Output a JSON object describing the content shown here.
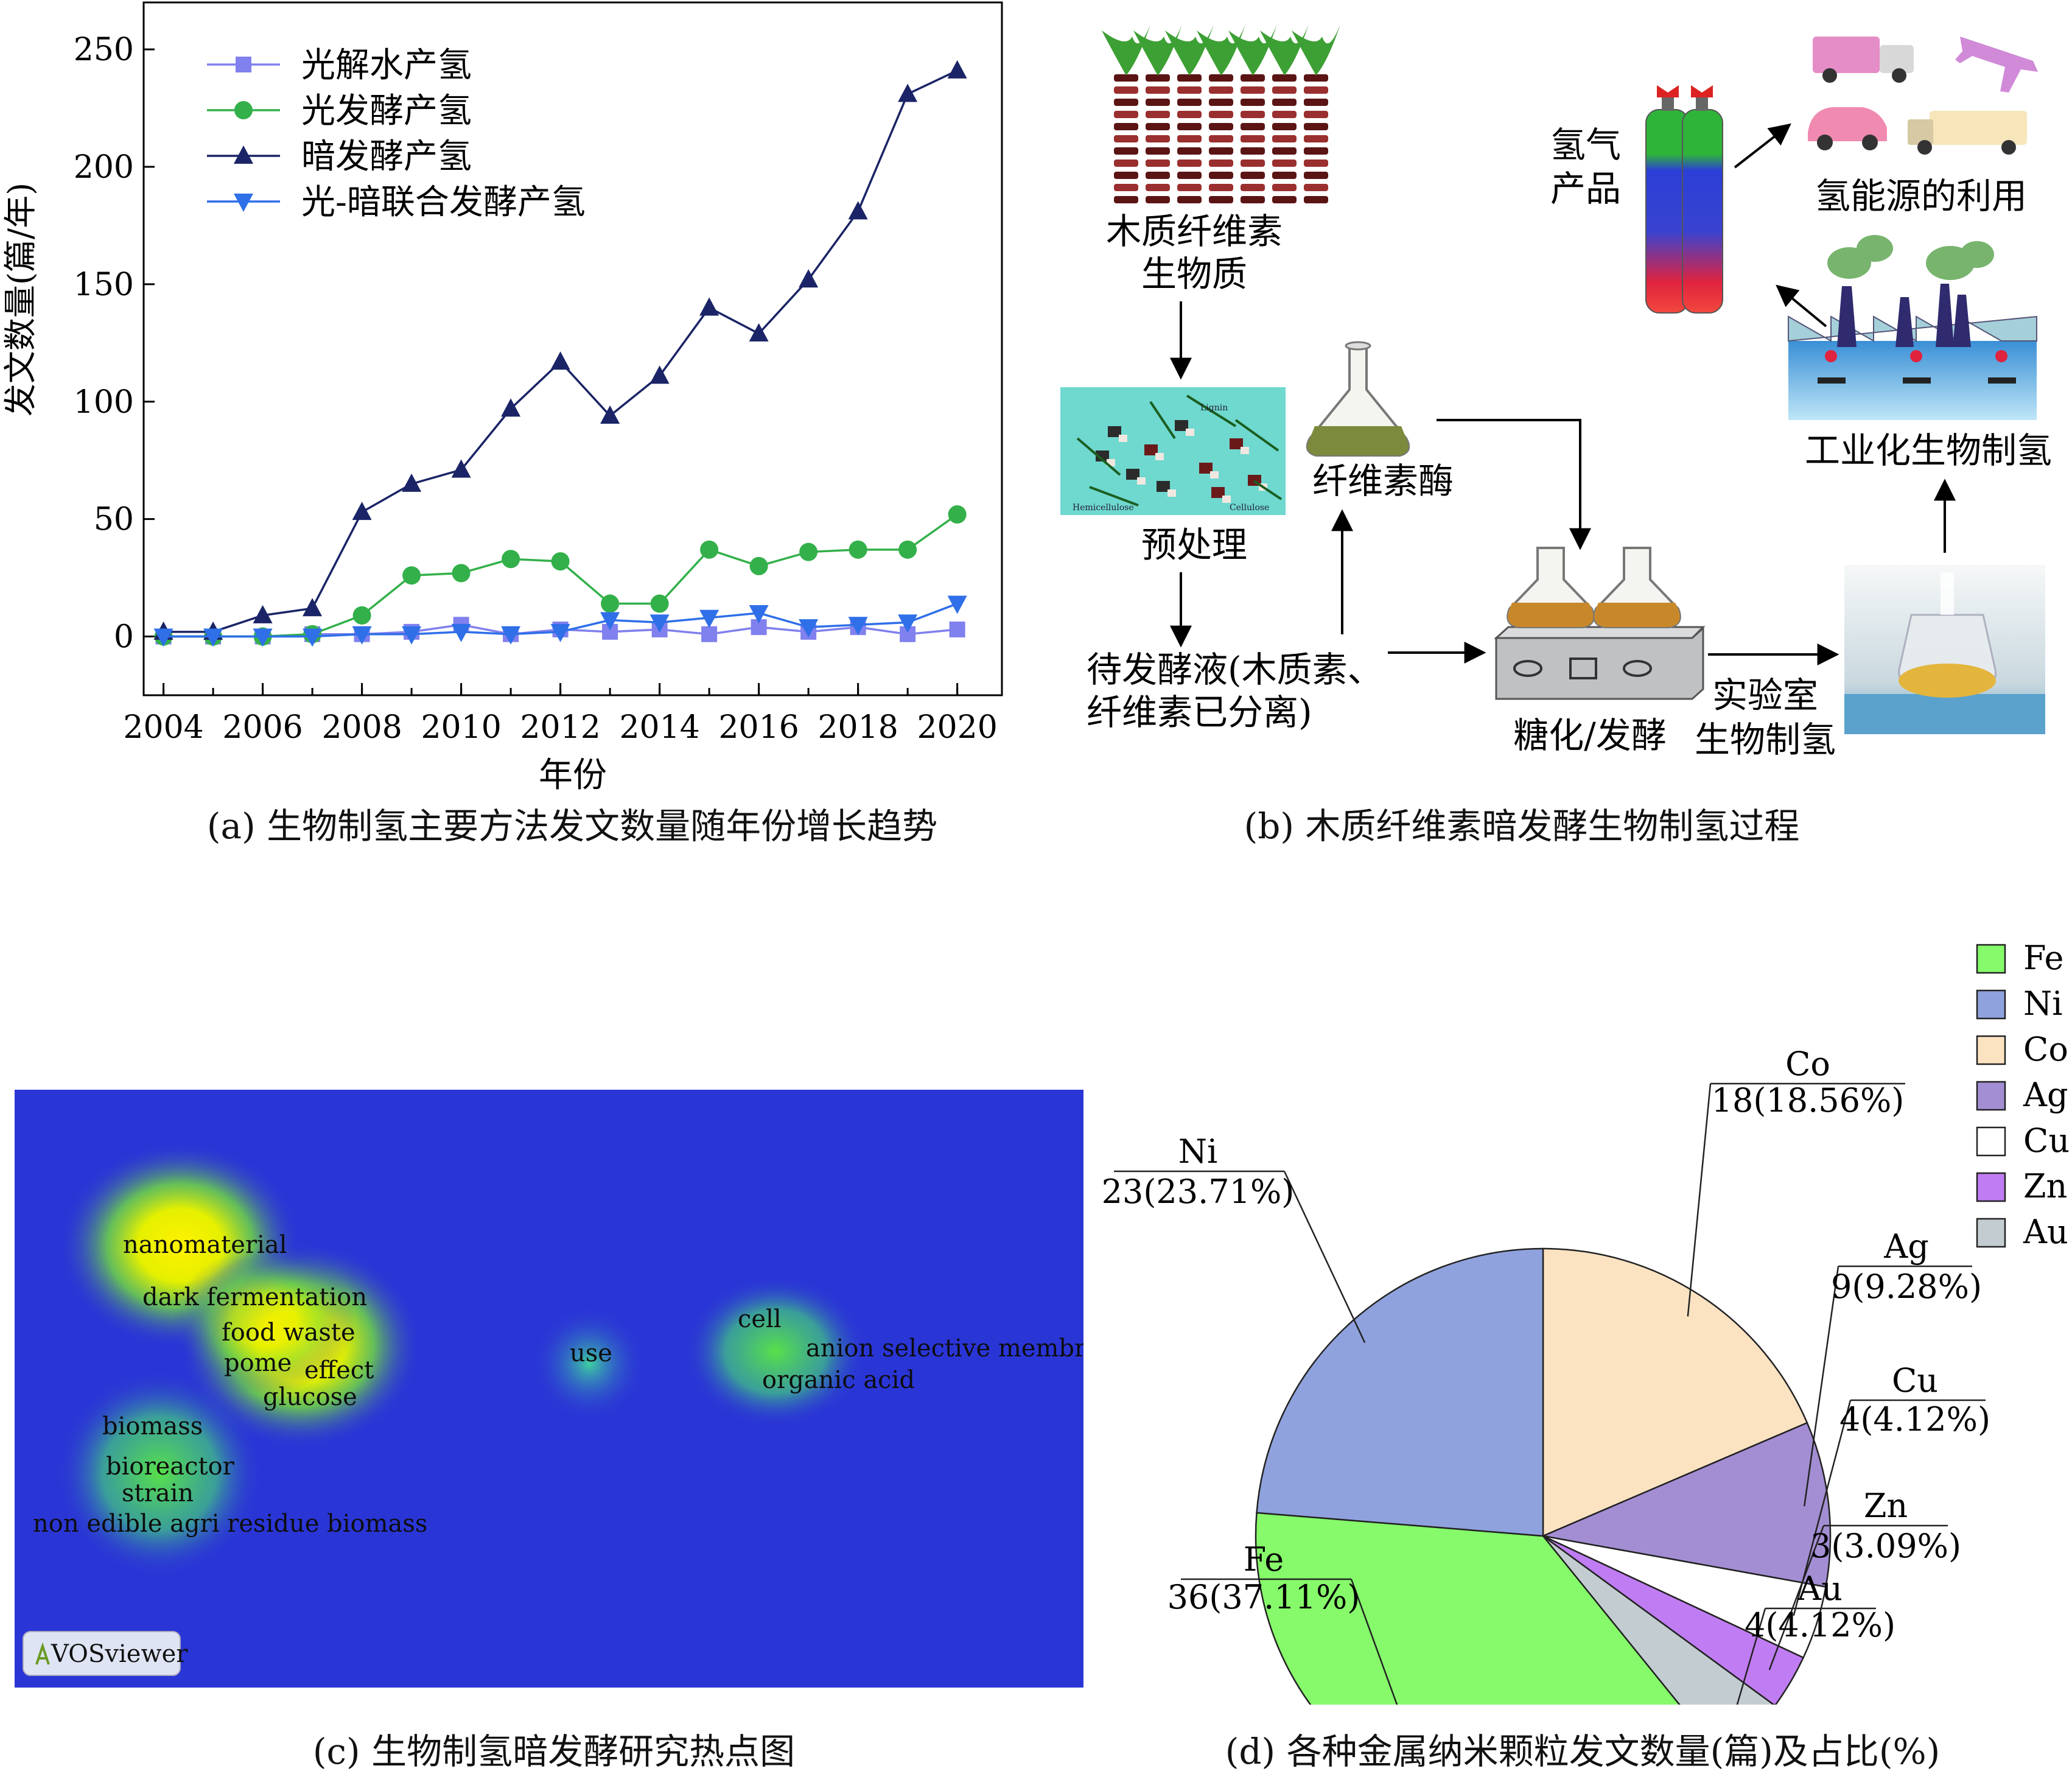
{
  "panels": {
    "a_caption": "(a) 生物制氢主要方法发文数量随年份增长趋势",
    "b_caption": "(b) 木质纤维素暗发酵生物制氢过程",
    "c_caption": "(c) 生物制氢暗发酵研究热点图",
    "d_caption": "(d) 各种金属纳米颗粒发文数量(篇)及占比(%)"
  },
  "chart_data": [
    {
      "type": "line",
      "xlabel": "年份",
      "ylabel": "发文数量(篇/年)",
      "x": [
        2004,
        2005,
        2006,
        2007,
        2008,
        2009,
        2010,
        2011,
        2012,
        2013,
        2014,
        2015,
        2016,
        2017,
        2018,
        2019,
        2020
      ],
      "xticks": [
        "2004",
        "2006",
        "2008",
        "2010",
        "2012",
        "2014",
        "2016",
        "2018",
        "2020"
      ],
      "yticks": [
        "0",
        "50",
        "100",
        "150",
        "200",
        "250"
      ],
      "xlim": [
        2003.6,
        2020.9
      ],
      "ylim": [
        -25,
        270
      ],
      "legend_position": "top-left",
      "series": [
        {
          "name": "光解水产氢",
          "marker": "square",
          "color": "#8080ee",
          "values": [
            0,
            0,
            0,
            1,
            1,
            2,
            5,
            1,
            3,
            2,
            3,
            1,
            4,
            2,
            4,
            1,
            3
          ]
        },
        {
          "name": "光发酵产氢",
          "marker": "circle",
          "color": "#33b04a",
          "values": [
            0,
            0,
            0,
            1,
            9,
            26,
            27,
            33,
            32,
            14,
            14,
            37,
            30,
            36,
            37,
            37,
            52
          ]
        },
        {
          "name": "暗发酵产氢",
          "marker": "triangle-up",
          "color": "#1a2466",
          "values": [
            2,
            2,
            9,
            12,
            53,
            65,
            71,
            97,
            117,
            94,
            111,
            140,
            129,
            152,
            181,
            231,
            241
          ]
        },
        {
          "name": "光-暗联合发酵产氢",
          "marker": "triangle-down",
          "color": "#2f6fe8",
          "values": [
            0,
            0,
            0,
            0,
            1,
            1,
            2,
            1,
            2,
            7,
            6,
            8,
            10,
            4,
            5,
            6,
            14
          ]
        }
      ]
    },
    {
      "type": "pie",
      "legend_position": "top-right",
      "slices": [
        {
          "name": "Co",
          "count": 18,
          "percent": 18.56,
          "label": "18(18.56%)",
          "color": "#fbe3c2"
        },
        {
          "name": "Ag",
          "count": 9,
          "percent": 9.28,
          "label": "9(9.28%)",
          "color": "#a38ed3"
        },
        {
          "name": "Cu",
          "count": 4,
          "percent": 4.12,
          "label": "4(4.12%)",
          "color": "#ffffff"
        },
        {
          "name": "Zn",
          "count": 3,
          "percent": 3.09,
          "label": "3(3.09%)",
          "color": "#c07cf2"
        },
        {
          "name": "Au",
          "count": 4,
          "percent": 4.12,
          "label": "4(4.12%)",
          "color": "#c3cdd1"
        },
        {
          "name": "Fe",
          "count": 36,
          "percent": 37.11,
          "label": "36(37.11%)",
          "color": "#86fa6a"
        },
        {
          "name": "Ni",
          "count": 23,
          "percent": 23.71,
          "label": "23(23.71%)",
          "color": "#8fa2dd"
        }
      ],
      "legend": [
        {
          "name": "Fe",
          "color": "#86fa6a"
        },
        {
          "name": "Ni",
          "color": "#8fa2dd"
        },
        {
          "name": "Co",
          "color": "#fbe3c2"
        },
        {
          "name": "Ag",
          "color": "#a38ed3"
        },
        {
          "name": "Cu",
          "color": "#ffffff"
        },
        {
          "name": "Zn",
          "color": "#c07cf2"
        },
        {
          "name": "Au",
          "color": "#c3cdd1"
        }
      ]
    }
  ],
  "process": {
    "feedstock": [
      "木质纤维素",
      "生物质"
    ],
    "pretreatment": "预处理",
    "pretreat_inner": [
      "Lignin",
      "Hemicellulose",
      "Cellulose"
    ],
    "enzyme": "纤维素酶",
    "liquor": [
      "待发酵液(木质素、",
      "纤维素已分离)"
    ],
    "sacch": "糖化/发酵",
    "lab": [
      "实验室",
      "生物制氢"
    ],
    "industrial": "工业化生物制氢",
    "gas": [
      "氢气",
      "产品"
    ],
    "use": "氢能源的利用"
  },
  "heatmap": {
    "terms": [
      "nanomaterial",
      "dark fermentation",
      "food waste",
      "pome",
      "effect",
      "glucose",
      "biomass",
      "bioreactor",
      "strain",
      "non edible agri residue biomass",
      "use",
      "cell",
      "anion selective membrane",
      "organic acid"
    ],
    "badge": "VOSviewer",
    "background": "#2a35d6"
  }
}
